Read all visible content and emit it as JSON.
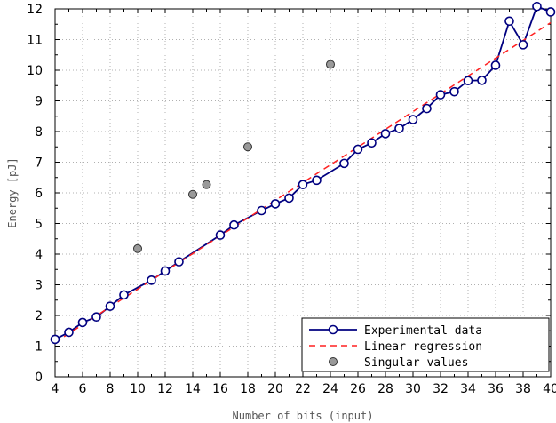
{
  "chart_data": {
    "type": "line",
    "xlabel": "Number of bits (input)",
    "ylabel": "Energy [pJ]",
    "xlim": [
      4,
      40
    ],
    "ylim": [
      0,
      12
    ],
    "x_ticks": [
      4,
      6,
      8,
      10,
      12,
      14,
      16,
      18,
      20,
      22,
      24,
      26,
      28,
      30,
      32,
      34,
      36,
      38,
      40
    ],
    "y_ticks": [
      0,
      1,
      2,
      3,
      4,
      5,
      6,
      7,
      8,
      9,
      10,
      11,
      12
    ],
    "grid": true,
    "legend_position": "bottom-right",
    "series": [
      {
        "name": "Experimental data",
        "kind": "line-markers",
        "color": "#000080",
        "x": [
          4,
          5,
          6,
          7,
          8,
          9,
          11,
          12,
          13,
          16,
          17,
          19,
          20,
          21,
          22,
          23,
          25,
          26,
          27,
          28,
          29,
          30,
          31,
          32,
          33,
          34,
          35,
          36,
          37,
          38,
          39,
          40
        ],
        "y": [
          1.22,
          1.45,
          1.77,
          1.95,
          2.3,
          2.67,
          3.15,
          3.45,
          3.75,
          4.62,
          4.95,
          5.42,
          5.64,
          5.83,
          6.27,
          6.41,
          6.96,
          7.42,
          7.63,
          7.93,
          8.1,
          8.39,
          8.75,
          9.2,
          9.3,
          9.66,
          9.67,
          10.16,
          11.6,
          10.83,
          12.08,
          11.9
        ]
      },
      {
        "name": "Linear regression",
        "kind": "dashed-line",
        "color": "#ff2020",
        "x": [
          4,
          40
        ],
        "y": [
          1.12,
          11.55
        ]
      },
      {
        "name": "Singular values",
        "kind": "scatter",
        "color": "#999999",
        "x": [
          10,
          14,
          15,
          18,
          24
        ],
        "y": [
          4.18,
          5.95,
          6.27,
          7.5,
          10.19
        ]
      }
    ]
  }
}
